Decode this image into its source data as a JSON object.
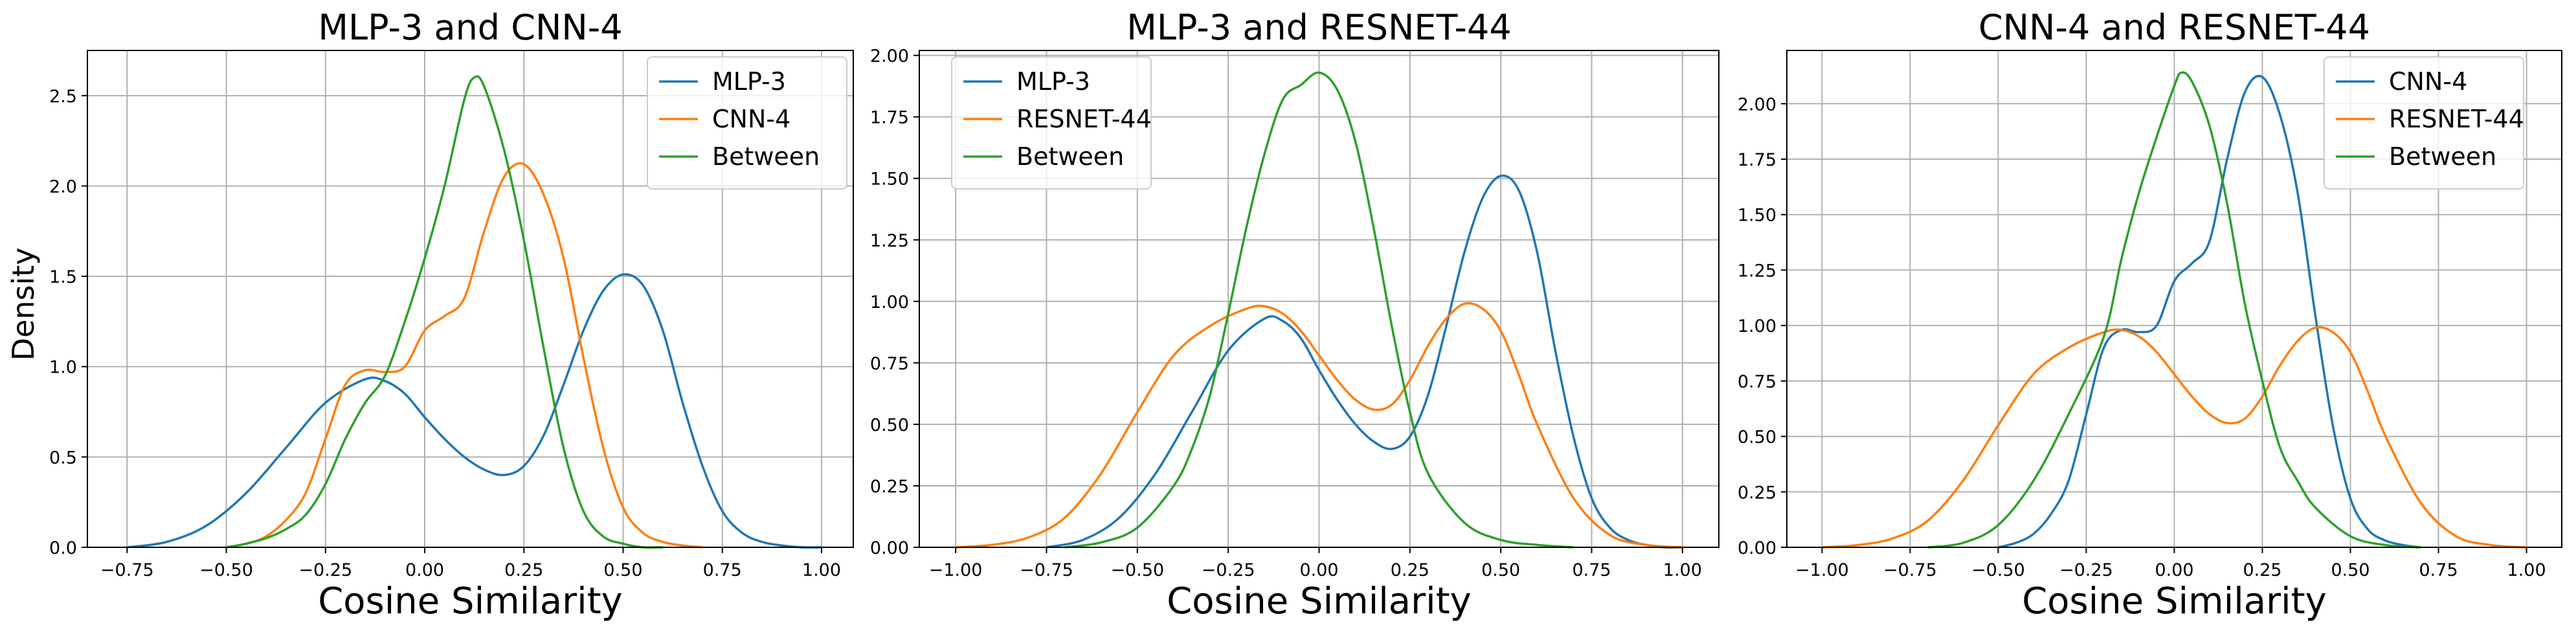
{
  "figure": {
    "ylabel": "Density",
    "xlabel": "Cosine Similarity"
  },
  "chart_data": [
    {
      "type": "line",
      "title": "MLP-3 and CNN-4",
      "xlabel": "Cosine Similarity",
      "ylabel": "Density",
      "xlim": [
        -0.85,
        1.08
      ],
      "ylim": [
        0,
        2.75
      ],
      "xticks": [
        -0.75,
        -0.5,
        -0.25,
        0.0,
        0.25,
        0.5,
        0.75,
        1.0
      ],
      "xtick_labels": [
        "−0.75",
        "−0.50",
        "−0.25",
        "0.00",
        "0.25",
        "0.50",
        "0.75",
        "1.00"
      ],
      "yticks": [
        0,
        0.5,
        1.0,
        1.5,
        2.0,
        2.5
      ],
      "ytick_labels": [
        "0.0",
        "0.5",
        "1.0",
        "1.5",
        "2.0",
        "2.5"
      ],
      "grid": true,
      "legend": "top-right",
      "series": [
        {
          "name": "MLP-3",
          "color": "#1f77b4",
          "x": [
            -0.75,
            -0.65,
            -0.55,
            -0.45,
            -0.35,
            -0.25,
            -0.15,
            -0.1,
            -0.05,
            0.0,
            0.05,
            0.1,
            0.15,
            0.2,
            0.25,
            0.3,
            0.35,
            0.4,
            0.45,
            0.5,
            0.55,
            0.6,
            0.65,
            0.7,
            0.75,
            0.8,
            0.85,
            0.9,
            0.95,
            1.0
          ],
          "y": [
            0.0,
            0.03,
            0.12,
            0.3,
            0.55,
            0.8,
            0.93,
            0.92,
            0.85,
            0.72,
            0.6,
            0.5,
            0.43,
            0.4,
            0.45,
            0.62,
            0.9,
            1.2,
            1.42,
            1.51,
            1.45,
            1.2,
            0.8,
            0.45,
            0.2,
            0.08,
            0.03,
            0.01,
            0.0,
            0.0
          ]
        },
        {
          "name": "CNN-4",
          "color": "#ff7f0e",
          "x": [
            -0.5,
            -0.45,
            -0.4,
            -0.35,
            -0.3,
            -0.25,
            -0.2,
            -0.15,
            -0.1,
            -0.05,
            0.0,
            0.05,
            0.1,
            0.15,
            0.2,
            0.25,
            0.3,
            0.35,
            0.4,
            0.45,
            0.5,
            0.55,
            0.6,
            0.65,
            0.7
          ],
          "y": [
            0.0,
            0.02,
            0.06,
            0.15,
            0.3,
            0.6,
            0.9,
            0.98,
            0.97,
            1.0,
            1.2,
            1.28,
            1.38,
            1.75,
            2.05,
            2.12,
            1.95,
            1.6,
            1.05,
            0.55,
            0.22,
            0.08,
            0.03,
            0.01,
            0.0
          ]
        },
        {
          "name": "Between",
          "color": "#2ca02c",
          "x": [
            -0.5,
            -0.45,
            -0.4,
            -0.35,
            -0.3,
            -0.25,
            -0.2,
            -0.15,
            -0.1,
            -0.05,
            0.0,
            0.05,
            0.1,
            0.125,
            0.15,
            0.2,
            0.25,
            0.3,
            0.35,
            0.4,
            0.45,
            0.5,
            0.55,
            0.6
          ],
          "y": [
            0.0,
            0.02,
            0.05,
            0.1,
            0.18,
            0.35,
            0.6,
            0.8,
            0.95,
            1.25,
            1.6,
            2.0,
            2.48,
            2.6,
            2.55,
            2.2,
            1.7,
            1.1,
            0.55,
            0.2,
            0.06,
            0.02,
            0.0,
            0.0
          ]
        }
      ]
    },
    {
      "type": "line",
      "title": "MLP-3 and RESNET-44",
      "xlabel": "Cosine Similarity",
      "ylabel": "",
      "xlim": [
        -1.1,
        1.1
      ],
      "ylim": [
        0,
        2.02
      ],
      "xticks": [
        -1.0,
        -0.75,
        -0.5,
        -0.25,
        0.0,
        0.25,
        0.5,
        0.75,
        1.0
      ],
      "xtick_labels": [
        "−1.00",
        "−0.75",
        "−0.50",
        "−0.25",
        "0.00",
        "0.25",
        "0.50",
        "0.75",
        "1.00"
      ],
      "yticks": [
        0,
        0.25,
        0.5,
        0.75,
        1.0,
        1.25,
        1.5,
        1.75,
        2.0
      ],
      "ytick_labels": [
        "0.00",
        "0.25",
        "0.50",
        "0.75",
        "1.00",
        "1.25",
        "1.50",
        "1.75",
        "2.00"
      ],
      "grid": true,
      "legend": "top-left",
      "series": [
        {
          "name": "MLP-3",
          "color": "#1f77b4",
          "x": [
            -0.75,
            -0.65,
            -0.55,
            -0.45,
            -0.35,
            -0.25,
            -0.15,
            -0.1,
            -0.05,
            0.0,
            0.05,
            0.1,
            0.15,
            0.2,
            0.25,
            0.3,
            0.35,
            0.4,
            0.45,
            0.5,
            0.55,
            0.6,
            0.65,
            0.7,
            0.75,
            0.8,
            0.85,
            0.9,
            0.95,
            1.0
          ],
          "y": [
            0.0,
            0.03,
            0.12,
            0.3,
            0.55,
            0.8,
            0.93,
            0.92,
            0.85,
            0.72,
            0.6,
            0.5,
            0.43,
            0.4,
            0.45,
            0.62,
            0.9,
            1.2,
            1.42,
            1.51,
            1.45,
            1.2,
            0.8,
            0.45,
            0.2,
            0.08,
            0.03,
            0.01,
            0.0,
            0.0
          ]
        },
        {
          "name": "RESNET-44",
          "color": "#ff7f0e",
          "x": [
            -1.0,
            -0.9,
            -0.8,
            -0.7,
            -0.6,
            -0.5,
            -0.4,
            -0.3,
            -0.2,
            -0.15,
            -0.1,
            -0.05,
            0.0,
            0.05,
            0.1,
            0.15,
            0.2,
            0.25,
            0.3,
            0.35,
            0.4,
            0.45,
            0.5,
            0.55,
            0.6,
            0.7,
            0.8,
            0.9,
            1.0
          ],
          "y": [
            0.0,
            0.01,
            0.04,
            0.12,
            0.3,
            0.55,
            0.78,
            0.9,
            0.97,
            0.98,
            0.95,
            0.88,
            0.78,
            0.68,
            0.6,
            0.56,
            0.58,
            0.68,
            0.82,
            0.93,
            0.99,
            0.97,
            0.88,
            0.7,
            0.5,
            0.2,
            0.05,
            0.01,
            0.0
          ]
        },
        {
          "name": "Between",
          "color": "#2ca02c",
          "x": [
            -0.7,
            -0.6,
            -0.5,
            -0.4,
            -0.35,
            -0.3,
            -0.25,
            -0.2,
            -0.15,
            -0.1,
            -0.05,
            0.0,
            0.05,
            0.1,
            0.15,
            0.2,
            0.25,
            0.3,
            0.4,
            0.5,
            0.6,
            0.7
          ],
          "y": [
            0.0,
            0.02,
            0.08,
            0.25,
            0.4,
            0.62,
            0.95,
            1.3,
            1.6,
            1.82,
            1.88,
            1.93,
            1.86,
            1.65,
            1.3,
            0.9,
            0.55,
            0.3,
            0.1,
            0.03,
            0.01,
            0.0
          ]
        }
      ]
    },
    {
      "type": "line",
      "title": "CNN-4 and RESNET-44",
      "xlabel": "Cosine Similarity",
      "ylabel": "",
      "xlim": [
        -1.1,
        1.1
      ],
      "ylim": [
        0,
        2.24
      ],
      "xticks": [
        -1.0,
        -0.75,
        -0.5,
        -0.25,
        0.0,
        0.25,
        0.5,
        0.75,
        1.0
      ],
      "xtick_labels": [
        "−1.00",
        "−0.75",
        "−0.50",
        "−0.25",
        "0.00",
        "0.25",
        "0.50",
        "0.75",
        "1.00"
      ],
      "yticks": [
        0,
        0.25,
        0.5,
        0.75,
        1.0,
        1.25,
        1.5,
        1.75,
        2.0
      ],
      "ytick_labels": [
        "0.00",
        "0.25",
        "0.50",
        "0.75",
        "1.00",
        "1.25",
        "1.50",
        "1.75",
        "2.00"
      ],
      "grid": true,
      "legend": "top-right",
      "series": [
        {
          "name": "CNN-4",
          "color": "#1f77b4",
          "x": [
            -0.5,
            -0.45,
            -0.4,
            -0.35,
            -0.3,
            -0.25,
            -0.2,
            -0.15,
            -0.1,
            -0.05,
            0.0,
            0.05,
            0.1,
            0.15,
            0.2,
            0.25,
            0.3,
            0.35,
            0.4,
            0.45,
            0.5,
            0.55,
            0.6,
            0.65,
            0.7
          ],
          "y": [
            0.0,
            0.02,
            0.06,
            0.15,
            0.3,
            0.6,
            0.9,
            0.98,
            0.97,
            1.0,
            1.2,
            1.28,
            1.38,
            1.75,
            2.05,
            2.12,
            1.95,
            1.6,
            1.05,
            0.55,
            0.22,
            0.08,
            0.03,
            0.01,
            0.0
          ]
        },
        {
          "name": "RESNET-44",
          "color": "#ff7f0e",
          "x": [
            -1.0,
            -0.9,
            -0.8,
            -0.7,
            -0.6,
            -0.5,
            -0.4,
            -0.3,
            -0.2,
            -0.15,
            -0.1,
            -0.05,
            0.0,
            0.05,
            0.1,
            0.15,
            0.2,
            0.25,
            0.3,
            0.35,
            0.4,
            0.45,
            0.5,
            0.55,
            0.6,
            0.7,
            0.8,
            0.9,
            1.0
          ],
          "y": [
            0.0,
            0.01,
            0.04,
            0.12,
            0.3,
            0.55,
            0.78,
            0.9,
            0.97,
            0.98,
            0.95,
            0.88,
            0.78,
            0.68,
            0.6,
            0.56,
            0.58,
            0.68,
            0.82,
            0.93,
            0.99,
            0.97,
            0.88,
            0.7,
            0.5,
            0.2,
            0.05,
            0.01,
            0.0
          ]
        },
        {
          "name": "Between",
          "color": "#2ca02c",
          "x": [
            -0.7,
            -0.6,
            -0.5,
            -0.4,
            -0.3,
            -0.2,
            -0.15,
            -0.1,
            -0.05,
            0.0,
            0.02,
            0.05,
            0.1,
            0.15,
            0.2,
            0.25,
            0.3,
            0.35,
            0.4,
            0.5,
            0.6,
            0.7
          ],
          "y": [
            0.0,
            0.02,
            0.1,
            0.3,
            0.6,
            0.95,
            1.3,
            1.6,
            1.85,
            2.08,
            2.14,
            2.1,
            1.9,
            1.55,
            1.1,
            0.75,
            0.45,
            0.3,
            0.18,
            0.05,
            0.01,
            0.0
          ]
        }
      ]
    }
  ]
}
